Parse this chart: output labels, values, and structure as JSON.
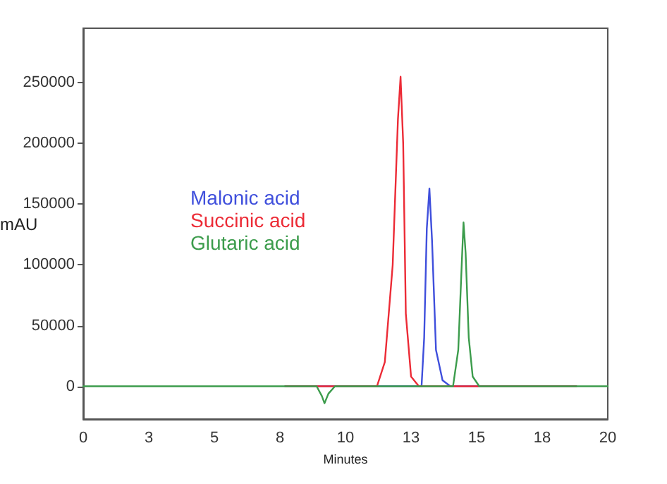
{
  "chart_data": {
    "type": "line",
    "xlabel": "Minutes",
    "ylabel": "mAU",
    "xlim": [
      0,
      20
    ],
    "ylim": [
      -27000,
      295000
    ],
    "xticks": [
      0,
      {
        "value": 2.5,
        "label": "3"
      },
      5,
      {
        "value": 7.5,
        "label": "8"
      },
      10,
      {
        "value": 12.5,
        "label": "13"
      },
      15,
      {
        "value": 17.5,
        "label": "18"
      },
      20
    ],
    "yticks": [
      0,
      50000,
      100000,
      150000,
      200000,
      250000
    ],
    "grid": false,
    "legend": "left",
    "marker": "none",
    "line_style": "solid",
    "series": [
      {
        "name": "Malonic acid",
        "color": "#3f4fdc",
        "x": [
          7.7,
          12.9,
          13.0,
          13.1,
          13.2,
          13.3,
          13.45,
          13.7,
          14.0,
          18.8
        ],
        "values": [
          0,
          0,
          40000,
          130000,
          163000,
          120000,
          30000,
          5000,
          0,
          0
        ]
      },
      {
        "name": "Succinic acid",
        "color": "#ec2b36",
        "x": [
          7.7,
          11.2,
          11.5,
          11.8,
          12.0,
          12.1,
          12.2,
          12.3,
          12.5,
          12.8,
          18.8
        ],
        "values": [
          0,
          0,
          20000,
          100000,
          220000,
          255000,
          200000,
          60000,
          8000,
          0,
          0
        ]
      },
      {
        "name": "Glutaric acid",
        "color": "#3c9c4c",
        "x": [
          0,
          8.9,
          9.1,
          9.2,
          9.35,
          9.6,
          14.1,
          14.3,
          14.45,
          14.5,
          14.58,
          14.7,
          14.85,
          15.1,
          20
        ],
        "values": [
          0,
          0,
          -8000,
          -14000,
          -6000,
          0,
          0,
          30000,
          110000,
          135000,
          110000,
          40000,
          8000,
          0,
          0
        ]
      }
    ]
  }
}
